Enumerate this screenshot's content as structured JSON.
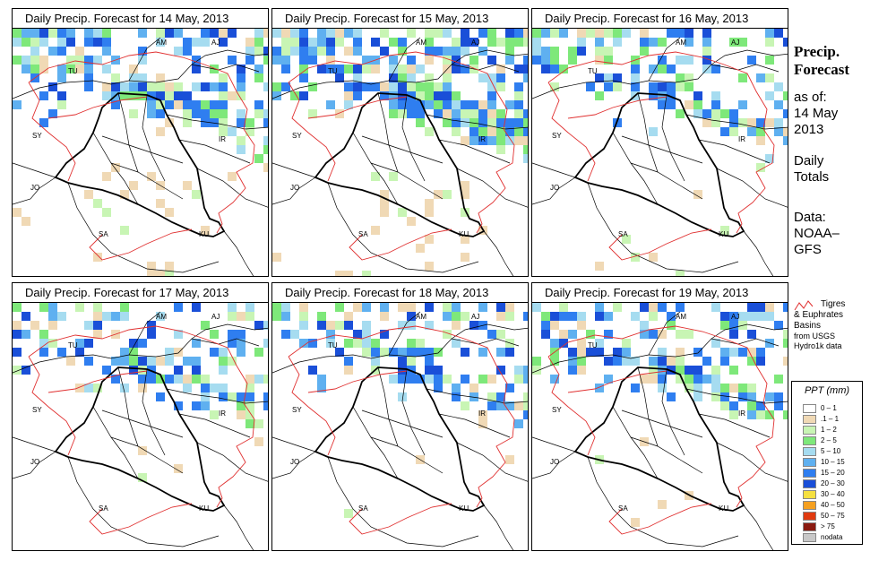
{
  "panels": [
    {
      "title": "Daily Precip. Forecast for  14 May, 2013",
      "intensity": 1.0,
      "south": 0.55
    },
    {
      "title": "Daily Precip. Forecast for  15 May, 2013",
      "intensity": 1.2,
      "south": 0.65
    },
    {
      "title": "Daily Precip. Forecast for  16 May, 2013",
      "intensity": 0.9,
      "south": 0.15
    },
    {
      "title": "Daily Precip. Forecast for  17 May, 2013",
      "intensity": 0.8,
      "south": 0.1
    },
    {
      "title": "Daily Precip. Forecast for  18 May, 2013",
      "intensity": 0.7,
      "south": 0.05
    },
    {
      "title": "Daily Precip. Forecast for  19 May, 2013",
      "intensity": 0.9,
      "south": 0.1
    }
  ],
  "countries": [
    "AM",
    "AJ",
    "TU",
    "SY",
    "IR",
    "JO",
    "SA",
    "KU"
  ],
  "side": {
    "title1": "Precip.",
    "title2": "Forecast",
    "asof": "as of:",
    "date1": "14 May",
    "date2": "2013",
    "daily1": "Daily",
    "daily2": "Totals",
    "data1": "Data:",
    "data2": "NOAA–",
    "data3": "GFS"
  },
  "basin_legend": {
    "line1": "Tigres",
    "line2": "& Euphrates",
    "line3": "Basins",
    "line4": "from USGS",
    "line5": "Hydro1k data"
  },
  "ppt_legend": {
    "title": "PPT (mm)",
    "items": [
      {
        "label": "0 – 1",
        "color": "#ffffff"
      },
      {
        "label": ".1 – 1",
        "color": "#f0d9b5"
      },
      {
        "label": "1 – 2",
        "color": "#c8f5b4"
      },
      {
        "label": "2 – 5",
        "color": "#7ee87a"
      },
      {
        "label": "5 – 10",
        "color": "#a6dcf0"
      },
      {
        "label": "10 – 15",
        "color": "#5fb0f0"
      },
      {
        "label": "15 – 20",
        "color": "#2f7ef0"
      },
      {
        "label": "20 – 30",
        "color": "#1a4fd8"
      },
      {
        "label": "30 – 40",
        "color": "#f5e040"
      },
      {
        "label": "40 – 50",
        "color": "#f5a020"
      },
      {
        "label": "50 – 75",
        "color": "#e03a10"
      },
      {
        "label": "> 75",
        "color": "#8a1a10"
      },
      {
        "label": "nodata",
        "color": "#c8c8c8"
      }
    ]
  },
  "colors": {
    "basin": "#e03030",
    "border": "#000000"
  }
}
